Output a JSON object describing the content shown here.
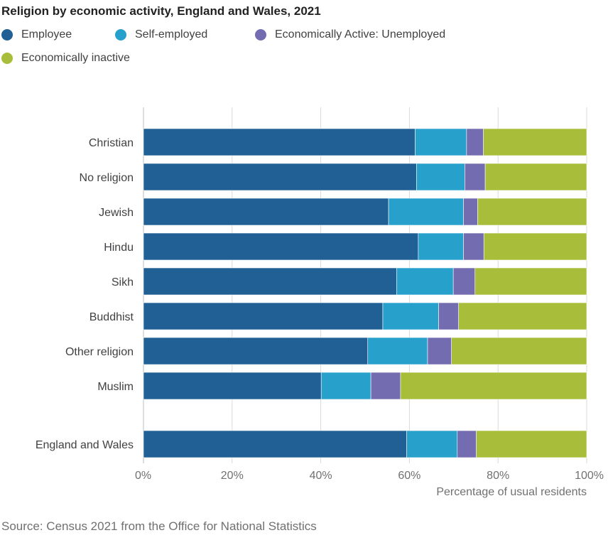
{
  "chart_data": {
    "type": "bar",
    "orientation": "horizontal",
    "stacked": true,
    "title": "Religion by economic activity, England and Wales, 2021",
    "xlabel": "Percentage of usual residents",
    "ylabel": "",
    "xlim": [
      0,
      100
    ],
    "x_ticks": [
      "0%",
      "20%",
      "40%",
      "60%",
      "80%",
      "100%"
    ],
    "grid": true,
    "legend_position": "top-left",
    "categories": [
      "Christian",
      "No religion",
      "Jewish",
      "Hindu",
      "Sikh",
      "Buddhist",
      "Other religion",
      "Muslim",
      "England and Wales"
    ],
    "series": [
      {
        "name": "Employee",
        "color": "#206095",
        "values": [
          61.3,
          61.6,
          55.3,
          62.0,
          57.1,
          54.0,
          50.6,
          40.1,
          59.4
        ]
      },
      {
        "name": "Self-employed",
        "color": "#27a0cc",
        "values": [
          11.6,
          10.9,
          16.9,
          10.2,
          12.8,
          12.6,
          13.5,
          11.2,
          11.4
        ]
      },
      {
        "name": "Economically Active: Unemployed",
        "color": "#746cb1",
        "values": [
          3.8,
          4.6,
          3.2,
          4.6,
          4.9,
          4.5,
          5.4,
          6.7,
          4.3
        ]
      },
      {
        "name": "Economically inactive",
        "color": "#a8bd3a",
        "values": [
          23.3,
          22.9,
          24.6,
          23.2,
          25.2,
          28.9,
          30.5,
          42.0,
          24.9
        ]
      }
    ]
  },
  "source": "Source: Census 2021 from the Office for National Statistics"
}
